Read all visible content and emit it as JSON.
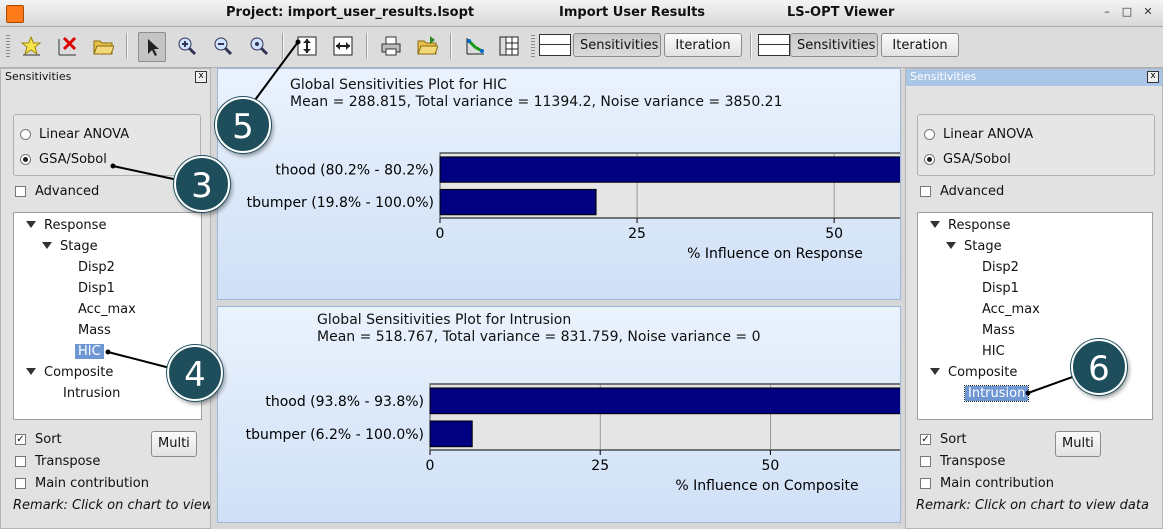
{
  "window": {
    "title_left": "Project: import_user_results.lsopt",
    "title_center": "Import User Results",
    "title_right": "LS-OPT Viewer"
  },
  "toolbar": {
    "icons": [
      "add-icon",
      "delete-icon",
      "folder-open-icon",
      "pointer-icon",
      "zoom-in-icon",
      "zoom-out-icon",
      "zoom-fit-icon",
      "fit-vertical-icon",
      "fit-horizontal-icon",
      "print-icon",
      "export-icon",
      "graph-edit-icon",
      "table-icon"
    ],
    "pane1": {
      "sensitivities": "Sensitivities",
      "iteration": "Iteration"
    },
    "pane2": {
      "sensitivities": "Sensitivities",
      "iteration": "Iteration"
    }
  },
  "left_panel": {
    "title": "Sensitivities",
    "method": {
      "linear": "Linear ANOVA",
      "gsa": "GSA/Sobol",
      "selected": "GSA/Sobol"
    },
    "advanced": "Advanced",
    "tree": {
      "response": "Response",
      "stage": "Stage",
      "items": [
        "Disp2",
        "Disp1",
        "Acc_max",
        "Mass",
        "HIC"
      ],
      "composite": "Composite",
      "composite_items": [
        "Intrusion"
      ],
      "selected": "HIC"
    },
    "sort": "Sort",
    "transpose": "Transpose",
    "main_contribution": "Main contribution",
    "multi": "Multi",
    "remark": "Remark: Click on chart to view data"
  },
  "right_panel": {
    "title": "Sensitivities",
    "method": {
      "linear": "Linear ANOVA",
      "gsa": "GSA/Sobol",
      "selected": "GSA/Sobol"
    },
    "advanced": "Advanced",
    "tree": {
      "response": "Response",
      "stage": "Stage",
      "items": [
        "Disp2",
        "Disp1",
        "Acc_max",
        "Mass",
        "HIC"
      ],
      "composite": "Composite",
      "composite_items": [
        "Intrusion"
      ],
      "selected": "Intrusion"
    },
    "sort": "Sort",
    "transpose": "Transpose",
    "main_contribution": "Main contribution",
    "multi": "Multi",
    "remark": "Remark: Click on chart to view data"
  },
  "callouts": {
    "c3": "3",
    "c4": "4",
    "c5": "5",
    "c6": "6"
  },
  "chart_data": [
    {
      "type": "bar",
      "orientation": "horizontal",
      "title": "Global Sensitivities Plot for HIC",
      "subtitle": "Mean = 288.815, Total variance = 11394.2, Noise variance = 3850.21",
      "categories": [
        "thood (80.2% - 80.2%)",
        "tbumper (19.8% - 100.0%)"
      ],
      "values": [
        80.2,
        19.8
      ],
      "xlabel": "% Influence on Response",
      "xlim": [
        0,
        85
      ],
      "xticks": [
        0,
        25,
        50,
        75
      ],
      "grid": true,
      "color": "#000080"
    },
    {
      "type": "bar",
      "orientation": "horizontal",
      "title": "Global Sensitivities Plot for Intrusion",
      "subtitle": "Mean = 518.767, Total variance = 831.759, Noise variance = 0",
      "categories": [
        "thood (93.8% - 93.8%)",
        "tbumper (6.2% - 100.0%)"
      ],
      "values": [
        93.8,
        6.2
      ],
      "xlabel": "% Influence on Composite",
      "xlim": [
        0,
        99
      ],
      "xticks": [
        0,
        25,
        50,
        75
      ],
      "grid": true,
      "color": "#000080"
    }
  ]
}
